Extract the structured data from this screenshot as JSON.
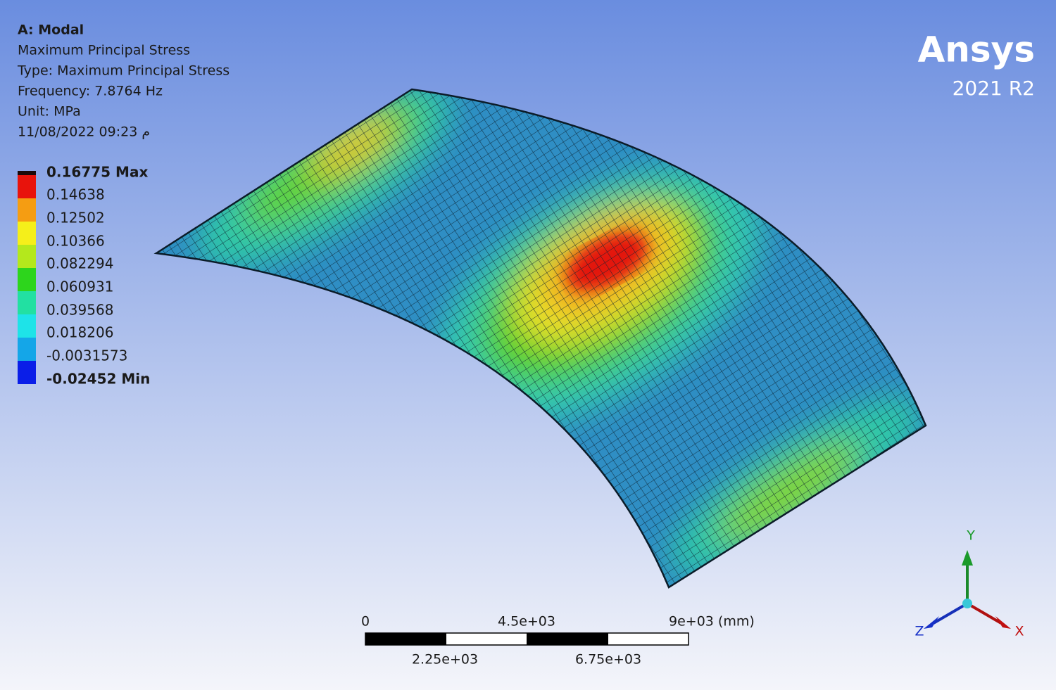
{
  "header": {
    "title": "A: Modal",
    "lines": [
      "Maximum Principal Stress",
      "Type: Maximum Principal Stress",
      "Frequency: 7.8764 Hz",
      "Unit: MPa",
      "11/08/2022 09:23 م"
    ]
  },
  "legend": {
    "labels": [
      "0.16775 Max",
      "0.14638",
      "0.12502",
      "0.10366",
      "0.082294",
      "0.060931",
      "0.039568",
      "0.018206",
      "-0.0031573",
      "-0.02452 Min"
    ]
  },
  "logo": {
    "name": "Ansys",
    "version": "2021 R2"
  },
  "scale_bar": {
    "top_labels": [
      "0",
      "4.5e+03",
      "9e+03 (mm)"
    ],
    "bottom_labels": [
      "2.25e+03",
      "6.75e+03"
    ]
  },
  "triad": {
    "y": "Y",
    "z": "Z",
    "x": "X"
  }
}
